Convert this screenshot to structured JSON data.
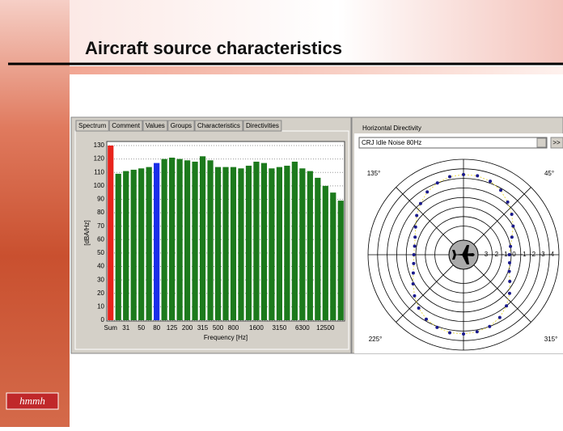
{
  "slide": {
    "title": "Aircraft source characteristics",
    "logo": "hmmh"
  },
  "tabs": [
    "Spectrum",
    "Comment",
    "Values",
    "Groups",
    "Characteristics",
    "Directivities"
  ],
  "chart_data": [
    {
      "type": "bar",
      "y_label": "[dBA/Hz]",
      "x_label": "Frequency [Hz]",
      "categories": [
        "Sum",
        null,
        "31",
        null,
        "50",
        null,
        "80",
        null,
        "125",
        null,
        "200",
        null,
        "315",
        null,
        "500",
        null,
        "800",
        null,
        null,
        "1600",
        null,
        null,
        "3150",
        null,
        null,
        "6300",
        null,
        null,
        "12500",
        null,
        null
      ],
      "values": [
        130,
        109,
        111,
        112,
        113,
        114,
        117,
        120,
        121,
        120,
        119,
        118,
        122,
        119,
        114,
        114,
        114,
        113,
        115,
        118,
        117,
        113,
        114,
        115,
        118,
        113,
        111,
        106,
        100,
        95,
        89
      ],
      "colors": [
        "#e8241c",
        "#1c7a1c",
        "#1c7a1c",
        "#1c7a1c",
        "#1c7a1c",
        "#1c7a1c",
        "#1a2ee8",
        "#1c7a1c",
        "#1c7a1c",
        "#1c7a1c",
        "#1c7a1c",
        "#1c7a1c",
        "#1c7a1c",
        "#1c7a1c",
        "#1c7a1c",
        "#1c7a1c",
        "#1c7a1c",
        "#1c7a1c",
        "#1c7a1c",
        "#1c7a1c",
        "#1c7a1c",
        "#1c7a1c",
        "#1c7a1c",
        "#1c7a1c",
        "#1c7a1c",
        "#1c7a1c",
        "#1c7a1c",
        "#1c7a1c",
        "#1c7a1c",
        "#1c7a1c",
        "#1c7a1c"
      ],
      "ylim": [
        0,
        130
      ],
      "yticks": [
        0,
        10,
        20,
        30,
        40,
        50,
        60,
        70,
        80,
        90,
        100,
        110,
        120,
        130
      ],
      "grid": true
    },
    {
      "type": "polar",
      "title": "Horizontal Directivity",
      "selector": "CRJ Idle Noise 80Hz",
      "button": ">>",
      "angle_labels": [
        "135°",
        "45°",
        "225°",
        "315°"
      ],
      "ring_labels": [
        "3",
        "-2",
        "-1",
        "0",
        "-1",
        "-2",
        "-3",
        "-4"
      ],
      "rlim": [
        0,
        10
      ],
      "color": "#1a1a8c",
      "theta": [
        0,
        10,
        20,
        30,
        40,
        50,
        60,
        70,
        80,
        90,
        100,
        110,
        120,
        130,
        140,
        150,
        160,
        170,
        180,
        190,
        200,
        210,
        220,
        230,
        240,
        250,
        260,
        270,
        280,
        290,
        300,
        310,
        320,
        330,
        340,
        350
      ],
      "r": [
        4.8,
        5.0,
        5.4,
        6.0,
        6.6,
        7.2,
        7.8,
        8.2,
        8.4,
        8.4,
        8.3,
        8.0,
        7.6,
        7.0,
        6.4,
        5.8,
        5.4,
        5.2,
        5.2,
        5.3,
        5.6,
        6.1,
        6.7,
        7.3,
        7.8,
        8.1,
        8.3,
        8.3,
        8.2,
        8.0,
        7.6,
        7.0,
        6.3,
        5.6,
        5.1,
        4.9
      ]
    }
  ]
}
